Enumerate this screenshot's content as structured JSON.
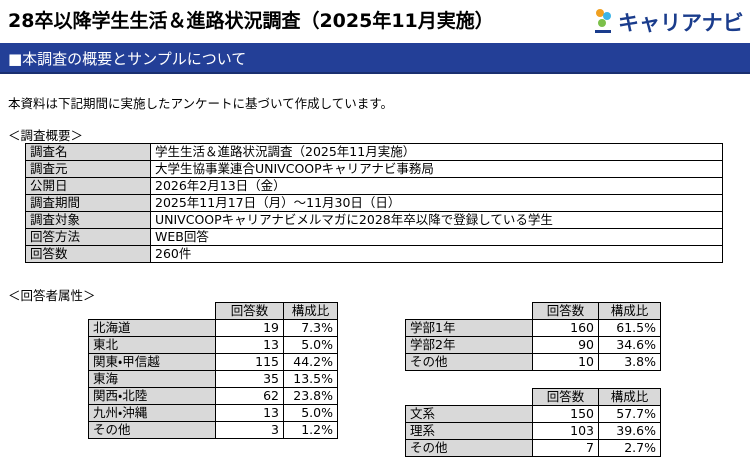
{
  "header": {
    "title": "28卒以降学生生活＆進路状況調査（2025年11月実施）",
    "logo": "キャリアナビ",
    "section": "■本調査の概要とサンプルについて"
  },
  "intro": "本資料は下記期間に実施したアンケートに基づいて作成しています。",
  "overview": {
    "heading": "＜調査概要＞",
    "rows": [
      [
        "調査名",
        "学生生活＆進路状況調査（2025年11月実施）"
      ],
      [
        "調査元",
        "大学生協事業連合UNIVCOOPキャリアナビ事務局"
      ],
      [
        "公開日",
        "2026年2月13日（金）"
      ],
      [
        "調査期間",
        "2025年11月17日（月）～11月30日（日）"
      ],
      [
        "調査対象",
        "UNIVCOOPキャリアナビメルマガに2028年卒以降で登録している学生"
      ],
      [
        "回答方法",
        "WEB回答"
      ],
      [
        "回答数",
        "260件"
      ]
    ]
  },
  "attributes": {
    "heading": "＜回答者属性＞",
    "tables": [
      {
        "columns": [
          "回答数",
          "構成比"
        ],
        "rows": [
          [
            "北海道",
            19,
            "7.3%"
          ],
          [
            "東北",
            13,
            "5.0%"
          ],
          [
            "関東・甲信越",
            115,
            "44.2%"
          ],
          [
            "東海",
            35,
            "13.5%"
          ],
          [
            "関西・北陸",
            62,
            "23.8%"
          ],
          [
            "九州・沖縄",
            13,
            "5.0%"
          ],
          [
            "その他",
            3,
            "1.2%"
          ]
        ]
      },
      {
        "columns": [
          "回答数",
          "構成比"
        ],
        "rows": [
          [
            "学部1年",
            160,
            "61.5%"
          ],
          [
            "学部2年",
            90,
            "34.6%"
          ],
          [
            "その他",
            10,
            "3.8%"
          ]
        ]
      },
      {
        "columns": [
          "回答数",
          "構成比"
        ],
        "rows": [
          [
            "文系",
            150,
            "57.7%"
          ],
          [
            "理系",
            103,
            "39.6%"
          ],
          [
            "その他",
            7,
            "2.7%"
          ]
        ]
      }
    ]
  }
}
